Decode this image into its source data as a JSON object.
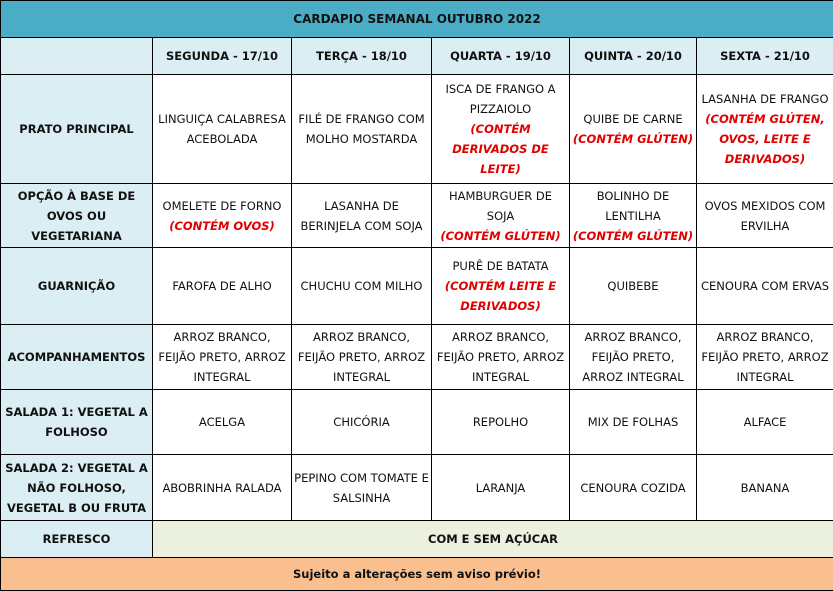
{
  "title": "CARDAPIO SEMANAL OUTUBRO 2022",
  "days": [
    "SEGUNDA - 17/10",
    "TERÇA - 18/10",
    "QUARTA - 19/10",
    "QUINTA - 20/10",
    "SEXTA - 21/10"
  ],
  "rows": [
    {
      "label": "PRATO PRINCIPAL",
      "cells": [
        {
          "text": "LINGUIÇA CALABRESA ACEBOLADA",
          "allergen": ""
        },
        {
          "text": "FILÉ DE FRANGO COM MOLHO MOSTARDA",
          "allergen": ""
        },
        {
          "text": "ISCA DE FRANGO A PIZZAIOLO",
          "allergen": "(CONTÉM DERIVADOS DE LEITE)"
        },
        {
          "text": "QUIBE DE CARNE",
          "allergen": "(CONTÉM GLÚTEN)"
        },
        {
          "text": "LASANHA DE FRANGO",
          "allergen": "(CONTÉM GLÚTEN, OVOS, LEITE E DERIVADOS)"
        }
      ]
    },
    {
      "label": "OPÇÃO À BASE DE OVOS OU VEGETARIANA",
      "cells": [
        {
          "text": "OMELETE DE FORNO",
          "allergen": "(CONTÉM OVOS)"
        },
        {
          "text": "LASANHA DE BERINJELA COM SOJA",
          "allergen": ""
        },
        {
          "text": "HAMBURGUER DE SOJA",
          "allergen": "(CONTÉM GLÚTEN)"
        },
        {
          "text": "BOLINHO DE LENTILHA",
          "allergen": "(CONTÉM GLÚTEN)"
        },
        {
          "text": "OVOS MEXIDOS COM ERVILHA",
          "allergen": ""
        }
      ]
    },
    {
      "label": "GUARNIÇÃO",
      "cells": [
        {
          "text": "FAROFA DE ALHO",
          "allergen": ""
        },
        {
          "text": "CHUCHU COM MILHO",
          "allergen": ""
        },
        {
          "text": "PURÊ DE BATATA",
          "allergen": "(CONTÉM LEITE E DERIVADOS)"
        },
        {
          "text": "QUIBEBE",
          "allergen": ""
        },
        {
          "text": "CENOURA COM ERVAS",
          "allergen": ""
        }
      ]
    },
    {
      "label": "ACOMPANHAMENTOS",
      "cells": [
        {
          "text": "ARROZ BRANCO, FEIJÃO PRETO, ARROZ INTEGRAL",
          "allergen": ""
        },
        {
          "text": "ARROZ BRANCO, FEIJÃO PRETO, ARROZ INTEGRAL",
          "allergen": ""
        },
        {
          "text": "ARROZ BRANCO, FEIJÃO PRETO, ARROZ INTEGRAL",
          "allergen": ""
        },
        {
          "text": "ARROZ BRANCO, FEIJÃO PRETO, ARROZ INTEGRAL",
          "allergen": ""
        },
        {
          "text": "ARROZ BRANCO, FEIJÃO PRETO, ARROZ INTEGRAL",
          "allergen": ""
        }
      ]
    },
    {
      "label": "SALADA 1: VEGETAL A FOLHOSO",
      "cells": [
        {
          "text": "ACELGA",
          "allergen": ""
        },
        {
          "text": "CHICÓRIA",
          "allergen": ""
        },
        {
          "text": "REPOLHO",
          "allergen": ""
        },
        {
          "text": "MIX DE FOLHAS",
          "allergen": ""
        },
        {
          "text": "ALFACE",
          "allergen": ""
        }
      ]
    },
    {
      "label": "SALADA 2: VEGETAL A NÃO FOLHOSO, VEGETAL B OU FRUTA",
      "cells": [
        {
          "text": "ABOBRINHA RALADA",
          "allergen": ""
        },
        {
          "text": "PEPINO COM TOMATE E SALSINHA",
          "allergen": ""
        },
        {
          "text": "LARANJA",
          "allergen": ""
        },
        {
          "text": "CENOURA COZIDA",
          "allergen": ""
        },
        {
          "text": "BANANA",
          "allergen": ""
        }
      ]
    }
  ],
  "refresco": {
    "label": "REFRESCO",
    "value": "COM E SEM AÇÚCAR"
  },
  "footer": "Sujeito a alterações sem aviso prévio!",
  "colors": {
    "title_bg": "#4BACC6",
    "label_bg": "#DAEEF3",
    "refresco_bg": "#EBF1DE",
    "footer_bg": "#FABF8F",
    "allergen": "#E00000"
  }
}
